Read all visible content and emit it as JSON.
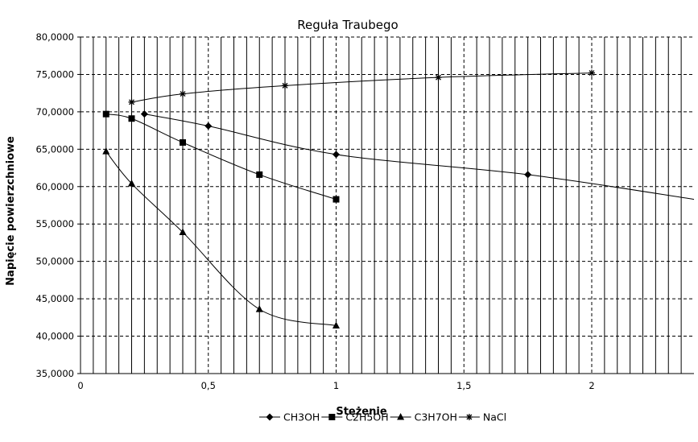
{
  "chart_data": {
    "type": "line",
    "title": "Reguła Traubego",
    "xlabel": "Stężenie",
    "ylabel": "Napięcie powierzchniowe",
    "xlim": [
      0,
      2.4
    ],
    "ylim": [
      35000,
      80000
    ],
    "x_tick_labels": [
      "0",
      "0,5",
      "1",
      "1,5",
      "2"
    ],
    "y_tick_labels": [
      "35,0000",
      "40,0000",
      "45,0000",
      "50,0000",
      "55,0000",
      "60,0000",
      "65,0000",
      "70,0000",
      "75,0000",
      "80,0000"
    ],
    "grid": true,
    "legend_position": "bottom",
    "series": [
      {
        "name": "CH3OH",
        "marker": "diamond",
        "points": [
          {
            "x": 0.25,
            "y": 69700
          },
          {
            "x": 0.5,
            "y": 68100
          },
          {
            "x": 1.0,
            "y": 64300
          },
          {
            "x": 1.75,
            "y": 61600
          },
          {
            "x": 2.4,
            "y": 58300
          }
        ]
      },
      {
        "name": "C2H5OH",
        "marker": "square",
        "points": [
          {
            "x": 0.1,
            "y": 69700
          },
          {
            "x": 0.2,
            "y": 69100
          },
          {
            "x": 0.4,
            "y": 65900
          },
          {
            "x": 0.7,
            "y": 61600
          },
          {
            "x": 1.0,
            "y": 58300
          }
        ]
      },
      {
        "name": "C3H7OH",
        "marker": "triangle",
        "points": [
          {
            "x": 0.1,
            "y": 64700
          },
          {
            "x": 0.2,
            "y": 60400
          },
          {
            "x": 0.4,
            "y": 53900
          },
          {
            "x": 0.7,
            "y": 43600
          },
          {
            "x": 1.0,
            "y": 41400
          }
        ]
      },
      {
        "name": "NaCl",
        "marker": "star",
        "points": [
          {
            "x": 0.2,
            "y": 71300
          },
          {
            "x": 0.4,
            "y": 72400
          },
          {
            "x": 0.8,
            "y": 73500
          },
          {
            "x": 1.4,
            "y": 74600
          },
          {
            "x": 2.0,
            "y": 75200
          }
        ]
      }
    ]
  }
}
